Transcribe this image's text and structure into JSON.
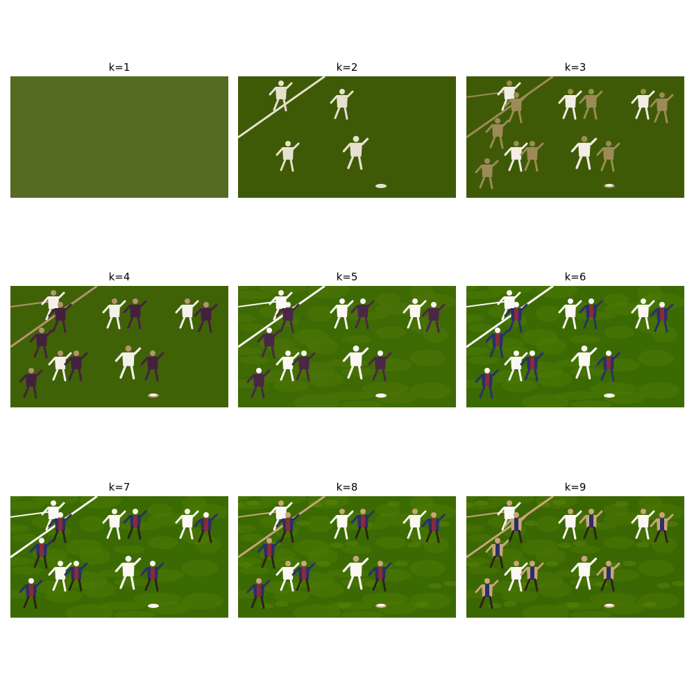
{
  "panels": [
    {
      "title": "k=1",
      "k": 1,
      "palette": [
        "#546b22"
      ]
    },
    {
      "title": "k=2",
      "k": 2,
      "palette": [
        "#3f5a06",
        "#e6e1cf"
      ]
    },
    {
      "title": "k=3",
      "k": 3,
      "palette": [
        "#3f5a06",
        "#f2ede5",
        "#9c8b58"
      ]
    },
    {
      "title": "k=4",
      "k": 4,
      "palette": [
        "#3f6206",
        "#f4f0ec",
        "#b49470",
        "#43213e"
      ]
    },
    {
      "title": "k=5",
      "k": 5,
      "palette": [
        "#3e6a04",
        "#4f7408",
        "#fbf7f2",
        "#c9a47d",
        "#4a2746"
      ]
    },
    {
      "title": "k=6",
      "k": 6,
      "palette": [
        "#3b6a02",
        "#4f7a06",
        "#fbf7f2",
        "#c9a47d",
        "#2a2f6a",
        "#8a2b3a"
      ]
    },
    {
      "title": "k=7",
      "k": 7,
      "palette": [
        "#3b6a02",
        "#4f7a06",
        "#fbf7f2",
        "#c9a47d",
        "#2a2f6a",
        "#8a2b3a",
        "#2b2316"
      ]
    },
    {
      "title": "k=8",
      "k": 8,
      "palette": [
        "#3b6a02",
        "#4f7a06",
        "#5b8507",
        "#fbf7f2",
        "#c9a47d",
        "#2a2f6a",
        "#8a2b3a",
        "#2b2316"
      ]
    },
    {
      "title": "k=9",
      "k": 9,
      "palette": [
        "#3a6702",
        "#4a7605",
        "#5b8507",
        "#fbf7f2",
        "#d6c6a8",
        "#c9a47d",
        "#2a2f6a",
        "#8a2b3a",
        "#2b2316"
      ]
    }
  ]
}
